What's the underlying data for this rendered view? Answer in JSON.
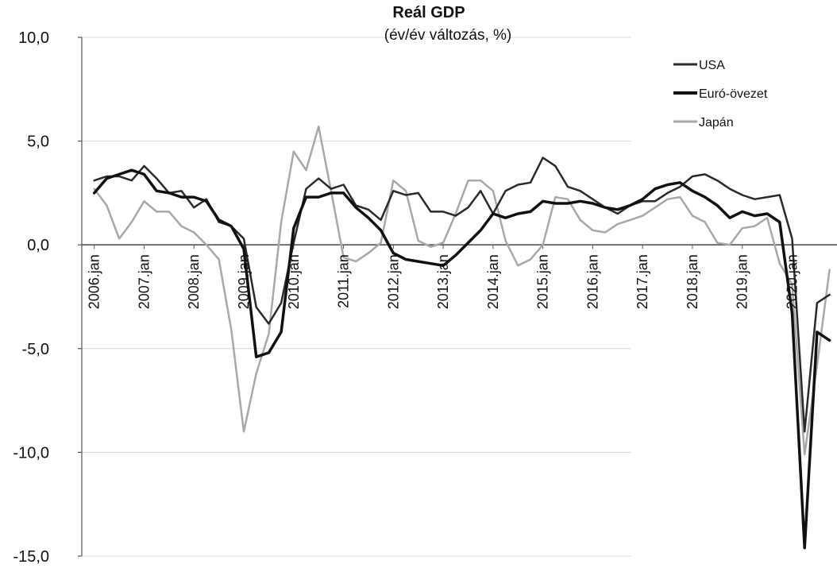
{
  "chart_data": {
    "type": "line",
    "title": "Reál GDP",
    "subtitle": "(év/év változás, %)",
    "ylim": [
      -15,
      10
    ],
    "yticks": [
      "10,0",
      "5,0",
      "0,0",
      "-5,0",
      "-10,0",
      "-15,0"
    ],
    "ytick_values": [
      10,
      5,
      0,
      -5,
      -10,
      -15
    ],
    "xlim": [
      2006.0,
      2020.75
    ],
    "xticks": [
      "2006.jan",
      "2007.jan",
      "2008.jan",
      "2009.jan",
      "2010.jan",
      "2011.jan",
      "2012.jan",
      "2013.jan",
      "2014.jan",
      "2015.jan",
      "2016.jan",
      "2017.jan",
      "2018.jan",
      "2019.jan",
      "2020.jan"
    ],
    "xtick_values": [
      2006,
      2007,
      2008,
      2009,
      2010,
      2011,
      2012,
      2013,
      2014,
      2015,
      2016,
      2017,
      2018,
      2019,
      2020
    ],
    "legend_position": "top-right",
    "x": [
      2006.0,
      2006.25,
      2006.5,
      2006.75,
      2007.0,
      2007.25,
      2007.5,
      2007.75,
      2008.0,
      2008.25,
      2008.5,
      2008.75,
      2009.0,
      2009.25,
      2009.5,
      2009.75,
      2010.0,
      2010.25,
      2010.5,
      2010.75,
      2011.0,
      2011.25,
      2011.5,
      2011.75,
      2012.0,
      2012.25,
      2012.5,
      2012.75,
      2013.0,
      2013.25,
      2013.5,
      2013.75,
      2014.0,
      2014.25,
      2014.5,
      2014.75,
      2015.0,
      2015.25,
      2015.5,
      2015.75,
      2016.0,
      2016.25,
      2016.5,
      2016.75,
      2017.0,
      2017.25,
      2017.5,
      2017.75,
      2018.0,
      2018.25,
      2018.5,
      2018.75,
      2019.0,
      2019.25,
      2019.5,
      2019.75,
      2020.0,
      2020.25,
      2020.5,
      2020.75
    ],
    "series": [
      {
        "name": "USA",
        "color": "#2a2a2a",
        "width": 2.5,
        "values": [
          3.1,
          3.3,
          3.3,
          3.1,
          3.8,
          3.2,
          2.5,
          2.6,
          1.8,
          2.2,
          1.1,
          0.9,
          0.3,
          -3.0,
          -3.8,
          -2.8,
          0.1,
          2.7,
          3.2,
          2.7,
          2.9,
          1.9,
          1.7,
          1.2,
          2.6,
          2.4,
          2.5,
          1.6,
          1.6,
          1.4,
          1.8,
          2.6,
          1.5,
          2.6,
          2.9,
          3.0,
          4.2,
          3.8,
          2.8,
          2.6,
          2.2,
          1.8,
          1.5,
          1.9,
          2.1,
          2.1,
          2.5,
          2.8,
          3.3,
          3.4,
          3.1,
          2.7,
          2.4,
          2.2,
          2.3,
          2.4,
          0.3,
          -9.0,
          -2.8,
          -2.4
        ]
      },
      {
        "name": "Euró-övezet",
        "color": "#111111",
        "width": 3.5,
        "values": [
          2.5,
          3.2,
          3.4,
          3.6,
          3.4,
          2.6,
          2.5,
          2.3,
          2.3,
          2.1,
          1.2,
          0.9,
          -0.2,
          -5.4,
          -5.2,
          -4.2,
          0.8,
          2.3,
          2.3,
          2.5,
          2.5,
          1.8,
          1.3,
          0.7,
          -0.4,
          -0.7,
          -0.8,
          -0.9,
          -1.0,
          -0.5,
          0.1,
          0.7,
          1.5,
          1.3,
          1.5,
          1.6,
          2.1,
          2.0,
          2.0,
          2.1,
          2.0,
          1.8,
          1.7,
          1.9,
          2.2,
          2.7,
          2.9,
          3.0,
          2.6,
          2.3,
          1.9,
          1.3,
          1.6,
          1.4,
          1.5,
          1.1,
          -3.3,
          -14.6,
          -4.2,
          -4.6
        ]
      },
      {
        "name": "Japán",
        "color": "#a8a8a8",
        "width": 2.5,
        "values": [
          2.7,
          1.9,
          0.3,
          1.1,
          2.1,
          1.6,
          1.6,
          0.9,
          0.6,
          0.0,
          -0.7,
          -4.1,
          -9.0,
          -6.2,
          -4.3,
          1.1,
          4.5,
          3.6,
          5.7,
          2.6,
          -0.6,
          -0.8,
          -0.4,
          0.1,
          3.1,
          2.6,
          0.2,
          -0.1,
          0.1,
          1.5,
          3.1,
          3.1,
          2.6,
          0.2,
          -1.0,
          -0.7,
          0.0,
          2.3,
          2.2,
          1.2,
          0.7,
          0.6,
          1.0,
          1.2,
          1.4,
          1.8,
          2.2,
          2.3,
          1.4,
          1.1,
          0.1,
          0.0,
          0.8,
          0.9,
          1.3,
          -0.9,
          -1.9,
          -10.1,
          -5.8,
          -1.2
        ]
      }
    ]
  }
}
